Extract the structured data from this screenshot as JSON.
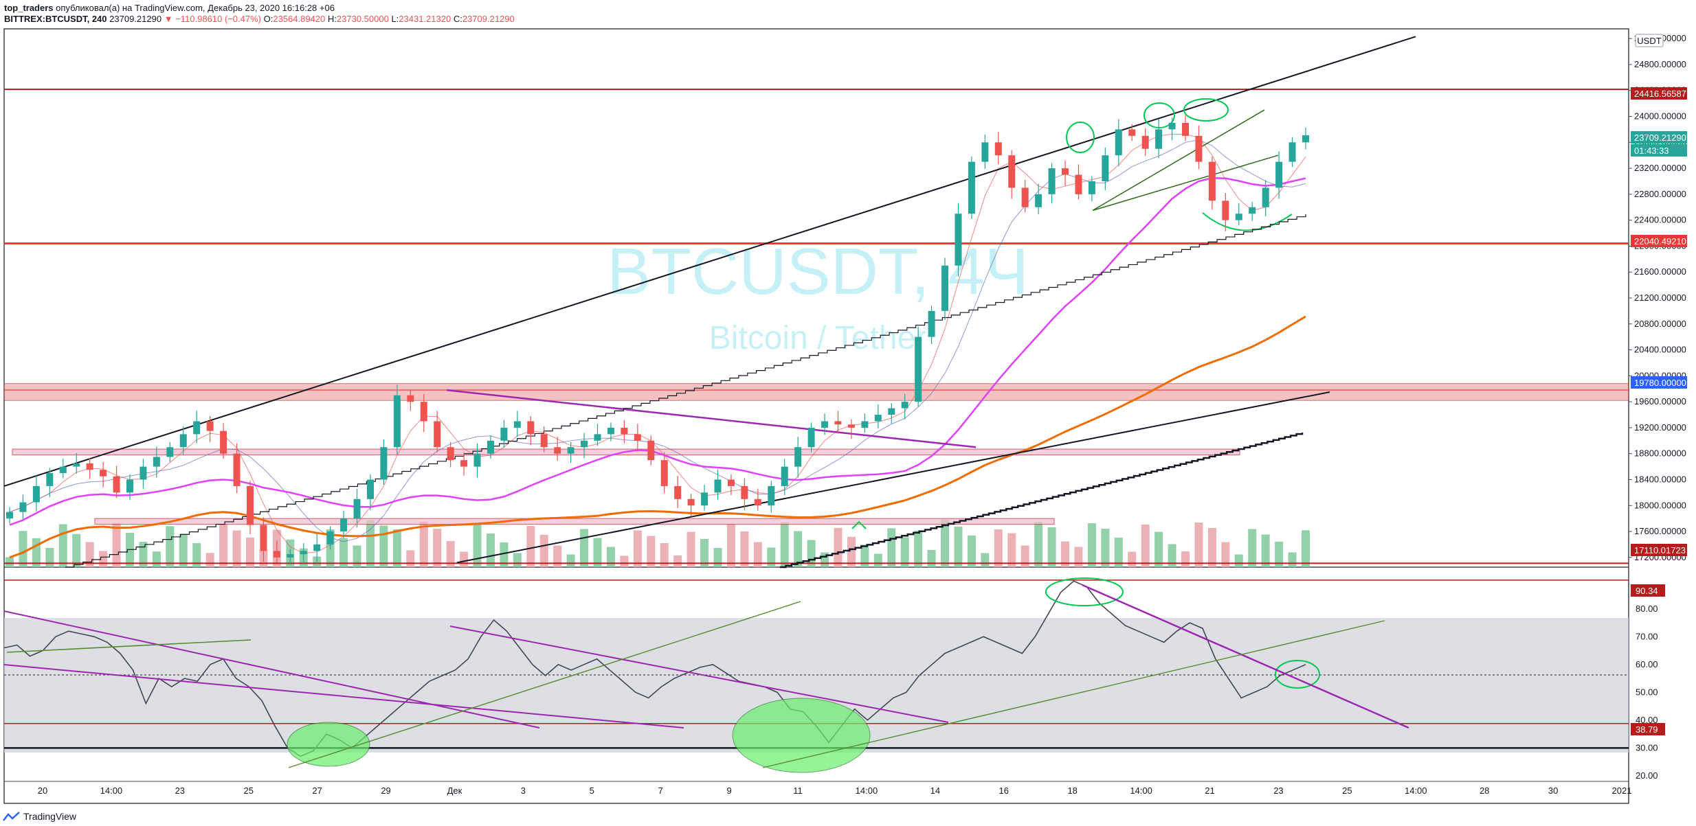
{
  "header": {
    "user": "top_traders",
    "published": "опубликовал(а) на TradingView.com, Декабрь 23, 2020 16:16:28 +06",
    "symbol": "BITTREX:BTCUSDT, 240",
    "last": "23709.21290",
    "change": "▼ −110.98610 (−0.47%)",
    "o_label": "O:",
    "o": "23564.89420",
    "h_label": "H:",
    "h": "23730.50000",
    "l_label": "L:",
    "l": "23431.21320",
    "c_label": "C:",
    "c": "23709.21290"
  },
  "watermark": {
    "symbol": "BTCUSDT, 4Ч",
    "name": "Bitcoin / Tether"
  },
  "footer": {
    "brand": "TradingView"
  },
  "currency": "USDT",
  "colors": {
    "up": "#26a69a",
    "down": "#ef5350",
    "upVol": "#7fc99a",
    "downVol": "#e9a3a8",
    "magenta": "#e040fb",
    "orange": "#ef6c00",
    "purple": "#9c27b0",
    "green": "#4caf50"
  },
  "chart_data": [
    {
      "type": "line",
      "title": "",
      "price_axis_ticks": [
        "25200.00000",
        "24800.00000",
        "24400.00000",
        "24000.00000",
        "23600.00000",
        "23200.00000",
        "22800.00000",
        "22400.00000",
        "22000.00000",
        "21600.00000",
        "21200.00000",
        "20800.00000",
        "20400.00000",
        "20000.00000",
        "19600.00000",
        "19200.00000",
        "18800.00000",
        "18400.00000",
        "18000.00000",
        "17600.00000",
        "17200.00000"
      ],
      "time_axis_ticks": [
        "20",
        "14:00",
        "23",
        "25",
        "27",
        "29",
        "Дек",
        "3",
        "5",
        "7",
        "9",
        "11",
        "14:00",
        "14",
        "16",
        "18",
        "14:00",
        "21",
        "23",
        "25",
        "14:00",
        "28",
        "30",
        "2021"
      ],
      "price_labels": [
        {
          "value": "24416.56587",
          "color": "#b71c1c"
        },
        {
          "value": "23709.21290",
          "color": "#26a69a"
        },
        {
          "value": "01:43:33",
          "color": "#26a69a"
        },
        {
          "value": "22040.49210",
          "color": "#e53935"
        },
        {
          "value": "19780.00000",
          "color": "#2962ff"
        },
        {
          "value": "17110.01723",
          "color": "#b71c1c"
        }
      ],
      "horizontal_levels": [
        24416.56587,
        22040.4921,
        19780,
        17110.01723
      ],
      "ylim": [
        17050,
        25350
      ],
      "close_series_approx": [
        17900,
        18050,
        18300,
        18500,
        18600,
        18650,
        18550,
        18450,
        18200,
        18400,
        18600,
        18750,
        18900,
        19100,
        19300,
        19150,
        18800,
        18300,
        17700,
        17300,
        17200,
        17250,
        17300,
        17400,
        17600,
        17800,
        18100,
        18400,
        18900,
        19700,
        19600,
        19300,
        18900,
        18700,
        18600,
        18800,
        19000,
        19200,
        19300,
        19100,
        18900,
        18800,
        18900,
        19000,
        19100,
        19200,
        19100,
        19000,
        18700,
        18300,
        18100,
        18000,
        18200,
        18400,
        18300,
        18100,
        18000,
        18300,
        18600,
        18900,
        19200,
        19300,
        19250,
        19200,
        19300,
        19400,
        19500,
        19600,
        20600,
        21000,
        21700,
        22500,
        23300,
        23600,
        23400,
        22900,
        22600,
        22800,
        23200,
        23100,
        22800,
        23000,
        23400,
        23800,
        23700,
        23500,
        23800,
        23900,
        23700,
        23300,
        22700,
        22400,
        22500,
        22600,
        22900,
        23300,
        23600,
        23709
      ],
      "overlay_lines_note": "",
      "ma_color_magenta": "#e040fb",
      "ma_color_orange": "#ef6c00"
    },
    {
      "type": "line",
      "title": "",
      "rsi_axis_ticks": [
        "80.00",
        "70.00",
        "60.00",
        "50.00",
        "40.00",
        "30.00",
        "20.00"
      ],
      "rsi_labels": [
        {
          "value": "90.34",
          "color": "#b71c1c"
        },
        {
          "value": "38.79",
          "color": "#b71c1c"
        }
      ],
      "levels": [
        90.34,
        38.79,
        30
      ],
      "band": [
        30,
        80
      ],
      "ylim": [
        18,
        95
      ],
      "rsi_series_approx": [
        66,
        67,
        63,
        65,
        70,
        72,
        71,
        70,
        68,
        64,
        58,
        46,
        55,
        52,
        55,
        54,
        60,
        62,
        55,
        52,
        47,
        38,
        30,
        27,
        29,
        35,
        33,
        30,
        34,
        38,
        42,
        46,
        50,
        54,
        56,
        58,
        62,
        70,
        76,
        72,
        66,
        60,
        56,
        60,
        58,
        60,
        62,
        58,
        54,
        50,
        48,
        52,
        55,
        57,
        59,
        60,
        57,
        54,
        53,
        52,
        50,
        44,
        43,
        38,
        32,
        38,
        44,
        40,
        44,
        48,
        50,
        56,
        60,
        64,
        66,
        68,
        70,
        68,
        66,
        64,
        70,
        78,
        86,
        90,
        88,
        82,
        78,
        74,
        72,
        70,
        68,
        72,
        75,
        73,
        62,
        55,
        48,
        50,
        52,
        56,
        58,
        60
      ]
    }
  ]
}
